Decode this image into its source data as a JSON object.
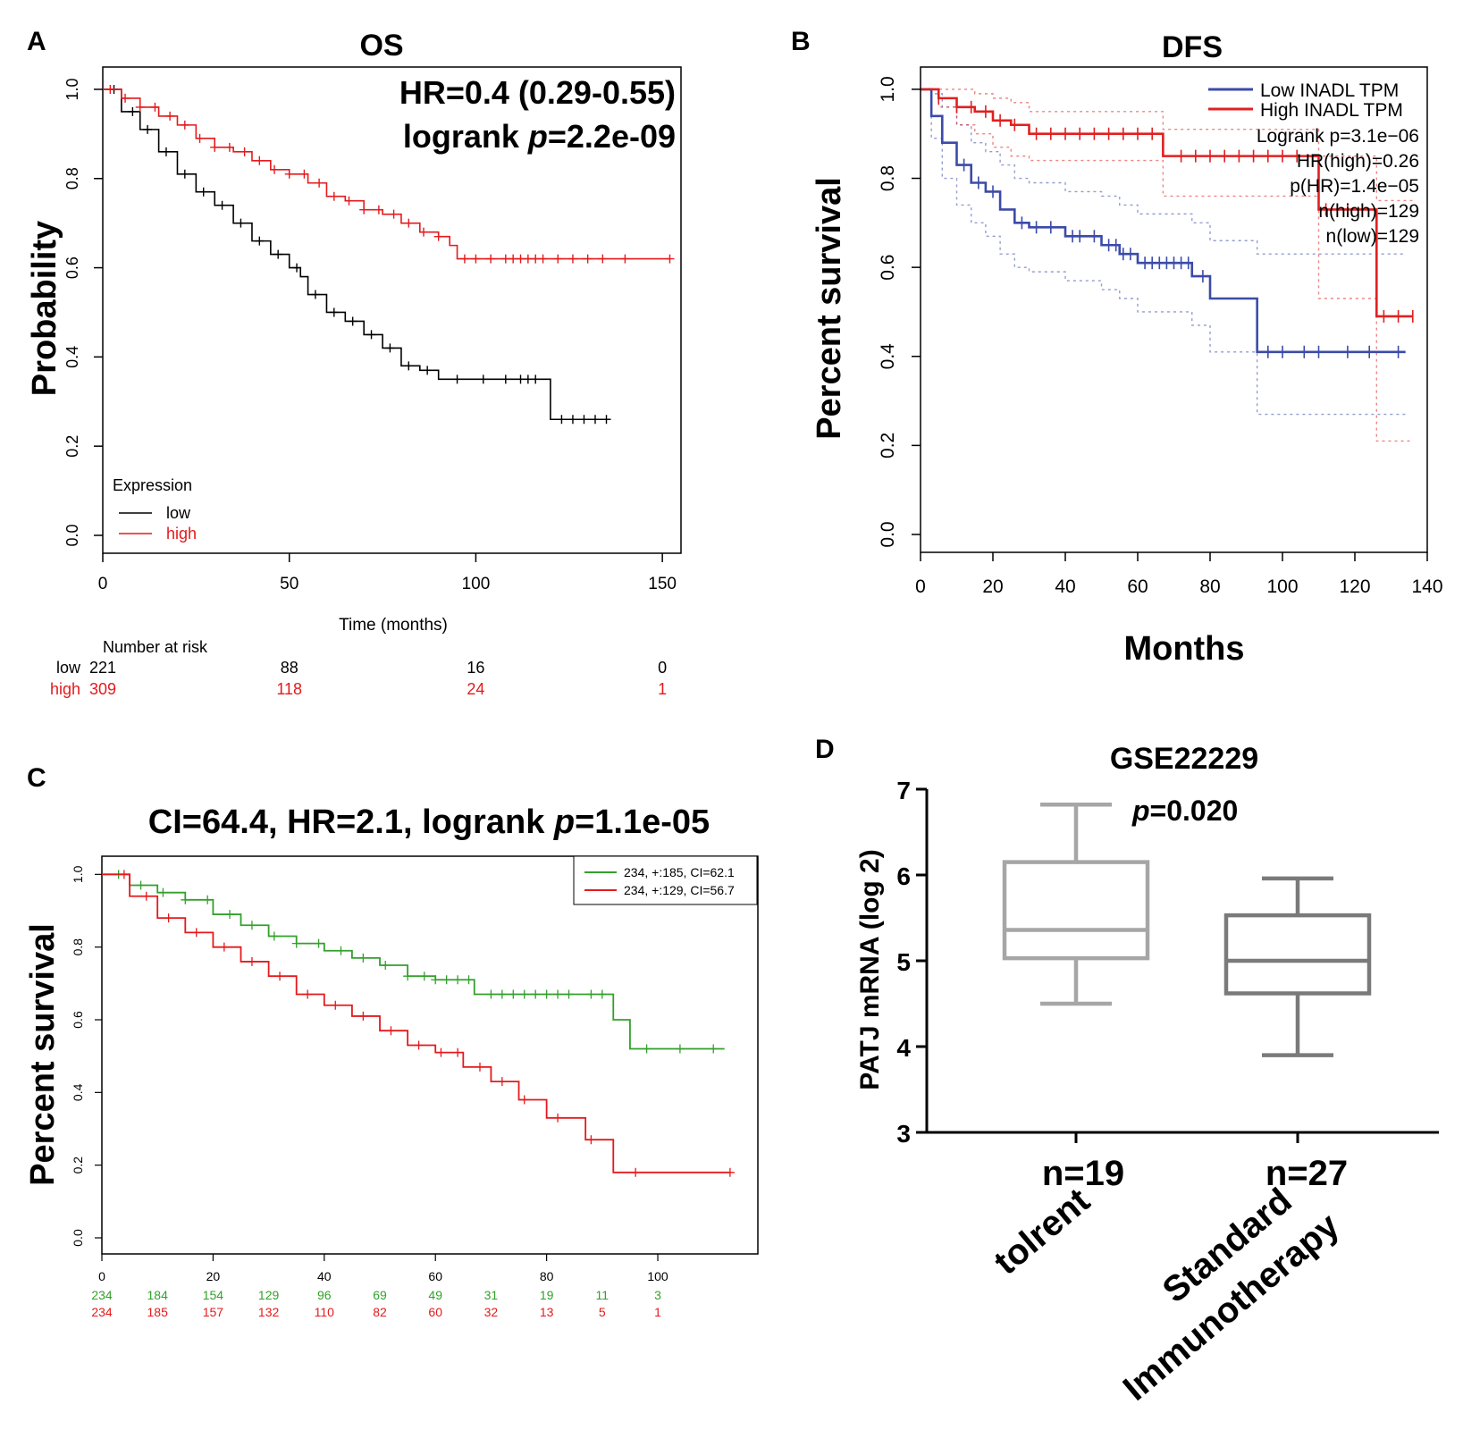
{
  "colors": {
    "black": "#000000",
    "red": "#e41a1c",
    "blue": "#3b4ba8",
    "dfs_red": "#e02020",
    "green": "#33a02c",
    "box_light": "#a6a6a6",
    "box_dark": "#7a7a7a"
  },
  "chart_data": [
    {
      "panel": "A",
      "type": "line",
      "title": "OS",
      "annotations": [
        "HR=0.4 (0.29-0.55)",
        "logrank p=2.2e-09"
      ],
      "annotation_parts": {
        "hr": "HR=0.4 (0.29-0.55)",
        "logrank_prefix": "logrank ",
        "p_italic": "p",
        "logrank_value": "=2.2e-09"
      },
      "xlabel": "Time (months)",
      "ylabel": "Probability",
      "xlim": [
        0,
        155
      ],
      "ylim": [
        0,
        1.05
      ],
      "xticks": [
        0,
        50,
        100,
        150
      ],
      "yticks": [
        0.0,
        0.2,
        0.4,
        0.6,
        0.8,
        1.0
      ],
      "ytick_labels": [
        "0.0",
        "0.2",
        "0.4",
        "0.6",
        "0.8",
        "1.0"
      ],
      "legend_title": "Expression",
      "series": [
        {
          "name": "low",
          "color": "#000000",
          "x": [
            0,
            5,
            10,
            15,
            20,
            25,
            30,
            35,
            40,
            45,
            50,
            53,
            55,
            60,
            65,
            70,
            75,
            80,
            85,
            90,
            95,
            100,
            105,
            110,
            115,
            118,
            120,
            125,
            130,
            136
          ],
          "y": [
            1.0,
            0.95,
            0.91,
            0.86,
            0.81,
            0.77,
            0.74,
            0.7,
            0.66,
            0.63,
            0.6,
            0.58,
            0.54,
            0.5,
            0.48,
            0.45,
            0.42,
            0.38,
            0.37,
            0.35,
            0.35,
            0.35,
            0.35,
            0.35,
            0.35,
            0.35,
            0.26,
            0.26,
            0.26,
            0.26
          ],
          "censor_x": [
            3,
            8,
            12,
            17,
            22,
            27,
            32,
            37,
            42,
            47,
            52,
            57,
            62,
            67,
            72,
            77,
            82,
            87,
            95,
            102,
            108,
            112,
            114,
            116,
            123,
            126,
            129,
            132,
            135
          ]
        },
        {
          "name": "high",
          "color": "#e41a1c",
          "x": [
            0,
            5,
            10,
            15,
            20,
            25,
            30,
            35,
            40,
            45,
            50,
            55,
            60,
            65,
            70,
            75,
            80,
            85,
            90,
            93,
            95,
            100,
            110,
            120,
            130,
            140,
            152
          ],
          "y": [
            1.0,
            0.98,
            0.96,
            0.94,
            0.92,
            0.89,
            0.87,
            0.86,
            0.84,
            0.82,
            0.81,
            0.79,
            0.76,
            0.75,
            0.73,
            0.72,
            0.7,
            0.68,
            0.67,
            0.65,
            0.62,
            0.62,
            0.62,
            0.62,
            0.62,
            0.62,
            0.62
          ],
          "censor_x": [
            2,
            6,
            10,
            14,
            18,
            22,
            26,
            30,
            34,
            38,
            42,
            46,
            50,
            54,
            58,
            62,
            66,
            70,
            74,
            78,
            82,
            86,
            90,
            97,
            100,
            104,
            108,
            110,
            112,
            114,
            116,
            118,
            122,
            126,
            130,
            134,
            140,
            152
          ]
        }
      ],
      "risk_table": {
        "header": "Number at risk",
        "times": [
          "0",
          "50",
          "100",
          "150"
        ],
        "rows": [
          {
            "label": "low",
            "values": [
              "221",
              "88",
              "16",
              "0"
            ]
          },
          {
            "label": "high",
            "values": [
              "309",
              "118",
              "24",
              "1"
            ]
          }
        ]
      }
    },
    {
      "panel": "B",
      "type": "line",
      "title": "DFS",
      "xlabel": "Months",
      "ylabel": "Percent survival",
      "xlim": [
        0,
        140
      ],
      "ylim": [
        0,
        1.05
      ],
      "xticks": [
        0,
        20,
        40,
        60,
        80,
        100,
        120,
        140
      ],
      "yticks": [
        0.0,
        0.2,
        0.4,
        0.6,
        0.8,
        1.0
      ],
      "ytick_labels": [
        "0.0",
        "0.2",
        "0.4",
        "0.6",
        "0.8",
        "1.0"
      ],
      "legend": [
        "Low INADL TPM",
        "High INADL TPM"
      ],
      "stats": [
        "Logrank p=3.1e−06",
        "HR(high)=0.26",
        "p(HR)=1.4e−05",
        "n(high)=129",
        "n(low)=129"
      ],
      "series": [
        {
          "name": "Low INADL TPM",
          "color": "#3b4ba8",
          "x": [
            0,
            3,
            6,
            10,
            14,
            18,
            22,
            26,
            30,
            40,
            50,
            55,
            60,
            65,
            70,
            75,
            80,
            85,
            88,
            92,
            93,
            100,
            110,
            120,
            134
          ],
          "y": [
            1.0,
            0.94,
            0.88,
            0.83,
            0.79,
            0.77,
            0.73,
            0.7,
            0.69,
            0.67,
            0.65,
            0.63,
            0.61,
            0.61,
            0.61,
            0.58,
            0.53,
            0.53,
            0.53,
            0.53,
            0.41,
            0.41,
            0.41,
            0.41,
            0.41
          ],
          "ci_upper": [
            1.0,
            0.99,
            0.96,
            0.92,
            0.88,
            0.86,
            0.83,
            0.8,
            0.79,
            0.77,
            0.76,
            0.74,
            0.72,
            0.72,
            0.72,
            0.7,
            0.66,
            0.66,
            0.66,
            0.66,
            0.63,
            0.63,
            0.63,
            0.63,
            0.63
          ],
          "ci_lower": [
            1.0,
            0.89,
            0.8,
            0.74,
            0.7,
            0.67,
            0.63,
            0.6,
            0.59,
            0.57,
            0.55,
            0.53,
            0.5,
            0.5,
            0.5,
            0.47,
            0.41,
            0.41,
            0.41,
            0.41,
            0.27,
            0.27,
            0.27,
            0.27,
            0.27
          ],
          "censor_x": [
            12,
            16,
            20,
            28,
            32,
            36,
            42,
            44,
            48,
            52,
            54,
            56,
            58,
            62,
            64,
            66,
            68,
            70,
            72,
            74,
            78,
            96,
            100,
            106,
            110,
            118,
            124,
            132
          ]
        },
        {
          "name": "High INADL TPM",
          "color": "#e02020",
          "x": [
            0,
            5,
            10,
            15,
            20,
            25,
            30,
            40,
            50,
            60,
            67,
            80,
            100,
            108,
            110,
            120,
            126,
            136
          ],
          "y": [
            1.0,
            0.98,
            0.96,
            0.95,
            0.93,
            0.92,
            0.9,
            0.9,
            0.9,
            0.9,
            0.85,
            0.85,
            0.85,
            0.85,
            0.73,
            0.73,
            0.49,
            0.49
          ],
          "ci_upper": [
            1.0,
            1.0,
            1.0,
            0.99,
            0.98,
            0.97,
            0.95,
            0.95,
            0.95,
            0.95,
            0.91,
            0.91,
            0.91,
            0.91,
            0.85,
            0.85,
            0.75,
            0.75
          ],
          "ci_lower": [
            1.0,
            0.96,
            0.92,
            0.9,
            0.87,
            0.85,
            0.84,
            0.84,
            0.84,
            0.84,
            0.76,
            0.76,
            0.76,
            0.76,
            0.53,
            0.53,
            0.21,
            0.21
          ],
          "censor_x": [
            5,
            10,
            14,
            18,
            22,
            26,
            32,
            36,
            40,
            44,
            48,
            52,
            56,
            60,
            64,
            72,
            76,
            80,
            84,
            88,
            92,
            96,
            100,
            104,
            112,
            118,
            128,
            132,
            136
          ]
        }
      ]
    },
    {
      "panel": "C",
      "type": "line",
      "title": "CI=64.4, HR=2.1, logrank p=1.1e-05",
      "title_parts": {
        "prefix": "CI=64.4, HR=2.1, logrank ",
        "p_italic": "p",
        "suffix": "=1.1e-05"
      },
      "xlabel": "",
      "ylabel": "Percent survival",
      "xlim": [
        0,
        118
      ],
      "ylim": [
        0,
        1.05
      ],
      "xticks": [
        0,
        20,
        40,
        60,
        80,
        100
      ],
      "yticks": [
        0.0,
        0.2,
        0.4,
        0.6,
        0.8,
        1.0
      ],
      "ytick_labels": [
        "0.0",
        "0.2",
        "0.4",
        "0.6",
        "0.8",
        "1.0"
      ],
      "legend": [
        "234, +:185, CI=62.1",
        "234, +:129, CI=56.7"
      ],
      "series": [
        {
          "name": "234, +:185, CI=62.1",
          "color": "#33a02c",
          "x": [
            0,
            5,
            10,
            15,
            20,
            25,
            30,
            35,
            40,
            45,
            50,
            55,
            60,
            65,
            67,
            70,
            75,
            80,
            85,
            90,
            92,
            95,
            100,
            112
          ],
          "y": [
            1.0,
            0.97,
            0.95,
            0.93,
            0.89,
            0.86,
            0.83,
            0.81,
            0.79,
            0.77,
            0.75,
            0.72,
            0.71,
            0.71,
            0.67,
            0.67,
            0.67,
            0.67,
            0.67,
            0.67,
            0.6,
            0.52,
            0.52,
            0.52
          ],
          "censor_x": [
            3,
            7,
            11,
            15,
            19,
            23,
            27,
            31,
            35,
            39,
            43,
            47,
            51,
            55,
            58,
            60,
            62,
            64,
            66,
            70,
            72,
            74,
            76,
            78,
            80,
            82,
            84,
            88,
            90,
            98,
            104,
            110
          ]
        },
        {
          "name": "234, +:129, CI=56.7",
          "color": "#e41a1c",
          "x": [
            0,
            5,
            10,
            15,
            20,
            25,
            30,
            35,
            40,
            45,
            50,
            55,
            60,
            65,
            70,
            75,
            80,
            85,
            87,
            90,
            92,
            95,
            100,
            113
          ],
          "y": [
            1.0,
            0.94,
            0.88,
            0.84,
            0.8,
            0.76,
            0.72,
            0.67,
            0.64,
            0.61,
            0.57,
            0.53,
            0.51,
            0.47,
            0.43,
            0.38,
            0.33,
            0.33,
            0.27,
            0.27,
            0.18,
            0.18,
            0.18,
            0.18
          ],
          "censor_x": [
            4,
            8,
            12,
            17,
            22,
            27,
            32,
            37,
            42,
            47,
            52,
            57,
            61,
            64,
            68,
            72,
            76,
            82,
            88,
            96,
            113
          ]
        }
      ],
      "risk_table": {
        "times": [
          "0",
          "10",
          "20",
          "30",
          "40",
          "50",
          "60",
          "70",
          "80",
          "90",
          "100"
        ],
        "rows": [
          {
            "color": "#33a02c",
            "values": [
              "234",
              "184",
              "154",
              "129",
              "96",
              "69",
              "49",
              "31",
              "19",
              "11",
              "3"
            ]
          },
          {
            "color": "#e41a1c",
            "values": [
              "234",
              "185",
              "157",
              "132",
              "110",
              "82",
              "60",
              "32",
              "13",
              "5",
              "1"
            ]
          }
        ]
      }
    },
    {
      "panel": "D",
      "type": "box",
      "title": "GSE22229",
      "annotation": "p=0.020",
      "annotation_parts": {
        "p_italic": "p",
        "value": "=0.020"
      },
      "ylabel": "PATJ mRNA (log 2)",
      "ylim": [
        3,
        7
      ],
      "yticks": [
        3,
        4,
        5,
        6,
        7
      ],
      "groups": [
        {
          "name": "tolrent",
          "n_label": "n=19",
          "color": "#a6a6a6",
          "min": 4.5,
          "q1": 5.03,
          "median": 5.36,
          "q3": 6.15,
          "max": 6.82
        },
        {
          "name": "Standard Immunotherapy",
          "name_lines": [
            "Standard",
            "Immunotherapy"
          ],
          "n_label": "n=27",
          "color": "#7a7a7a",
          "min": 3.9,
          "q1": 4.62,
          "median": 5.0,
          "q3": 5.53,
          "max": 5.96
        }
      ]
    }
  ]
}
